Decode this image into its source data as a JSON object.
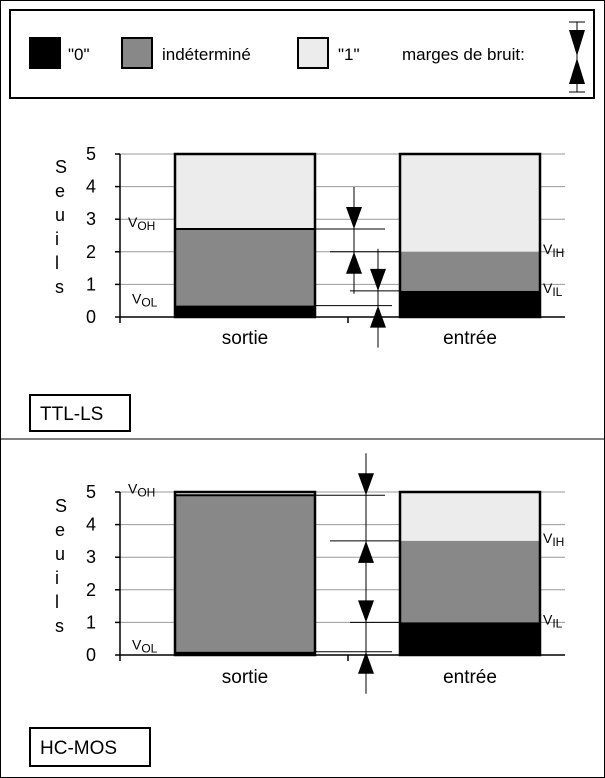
{
  "legend": {
    "zero_label": "\"0\"",
    "undefined_label": "indéterminé",
    "one_label": "\"1\"",
    "noise_label": "marges de bruit:",
    "zero_color": "#000000",
    "undefined_color": "#888888",
    "one_color": "#ececec"
  },
  "axis": {
    "label_letters": [
      "S",
      "e",
      "u",
      "i",
      "l",
      "s"
    ],
    "ticks": [
      "0",
      "1",
      "2",
      "3",
      "4",
      "5"
    ]
  },
  "panels": [
    {
      "name": "TTL-LS",
      "family_label": "TTL-LS",
      "output_label": "sortie",
      "input_label": "entrée",
      "output": {
        "vol": 0.35,
        "voh": 2.7,
        "max": 5
      },
      "input": {
        "vil": 0.8,
        "vih": 2.0,
        "max": 5
      },
      "voh_label": "OH",
      "vol_label": "OL",
      "vih_label": "IH",
      "vil_label": "IL",
      "v_letter": "V"
    },
    {
      "name": "HC-MOS",
      "family_label": "HC-MOS",
      "output_label": "sortie",
      "input_label": "entrée",
      "output": {
        "vol": 0.1,
        "voh": 4.9,
        "max": 5
      },
      "input": {
        "vil": 1.0,
        "vih": 3.5,
        "max": 5
      },
      "voh_label": "OH",
      "vol_label": "OL",
      "vih_label": "IH",
      "vil_label": "IL",
      "v_letter": "V"
    }
  ]
}
